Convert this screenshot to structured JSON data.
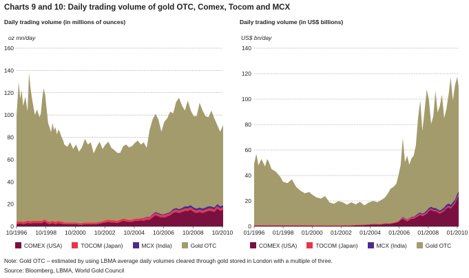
{
  "title": "Charts 9 and 10: Daily trading volume of gold OTC, Comex, Tocom and MCX",
  "note": "Note: Gold OTC – estimated by using LBMA average daily volumes cleared through gold stored in London with a multiple of three.",
  "source": "Source: Bloomberg, LBMA, World Gold Council",
  "colors": {
    "comex": "#7a1040",
    "tocom": "#e8354a",
    "mcx": "#4b2c8c",
    "gold_otc": "#a39b6c"
  },
  "chart_data": [
    {
      "type": "area",
      "subtitle": "Daily trading volume (in millions of ounces)",
      "ylabel": "oz mn/day",
      "ylim": [
        0,
        160
      ],
      "yticks": [
        0,
        20,
        40,
        60,
        80,
        100,
        120,
        140,
        160
      ],
      "xlim": [
        1996.75,
        2010.8
      ],
      "xticks": [
        {
          "label": "10/1996",
          "x": 1996.75
        },
        {
          "label": "10/1998",
          "x": 1998.75
        },
        {
          "label": "10/2000",
          "x": 2000.75
        },
        {
          "label": "10/2002",
          "x": 2002.75
        },
        {
          "label": "10/2004",
          "x": 2004.75
        },
        {
          "label": "10/2006",
          "x": 2006.75
        },
        {
          "label": "10/2008",
          "x": 2008.75
        },
        {
          "label": "10/2010",
          "x": 2010.75
        }
      ],
      "x": [
        1996.75,
        1996.9,
        1997.0,
        1997.1,
        1997.2,
        1997.35,
        1997.5,
        1997.6,
        1997.7,
        1997.8,
        1998.0,
        1998.15,
        1998.3,
        1998.4,
        1998.5,
        1998.6,
        1998.7,
        1998.8,
        1998.9,
        1999.0,
        1999.1,
        1999.2,
        1999.3,
        1999.4,
        1999.5,
        1999.6,
        1999.7,
        1999.8,
        1999.9,
        2000.0,
        2000.2,
        2000.4,
        2000.6,
        2000.8,
        2001.0,
        2001.2,
        2001.4,
        2001.6,
        2001.8,
        2002.0,
        2002.2,
        2002.4,
        2002.6,
        2002.8,
        2003.0,
        2003.2,
        2003.4,
        2003.6,
        2003.8,
        2004.0,
        2004.2,
        2004.4,
        2004.6,
        2004.8,
        2005.0,
        2005.2,
        2005.4,
        2005.6,
        2005.8,
        2006.0,
        2006.2,
        2006.4,
        2006.6,
        2006.8,
        2007.0,
        2007.2,
        2007.4,
        2007.6,
        2007.8,
        2008.0,
        2008.2,
        2008.4,
        2008.6,
        2008.8,
        2009.0,
        2009.2,
        2009.4,
        2009.6,
        2009.8,
        2010.0,
        2010.2,
        2010.4,
        2010.6,
        2010.8
      ],
      "series": [
        {
          "name": "COMEX (USA)",
          "color_key": "comex",
          "values": [
            2,
            2.5,
            2.5,
            2.5,
            2,
            2.5,
            3,
            3,
            2.5,
            3,
            3,
            3,
            3,
            3,
            3,
            4,
            4,
            3,
            2.5,
            2,
            2.5,
            3,
            2.5,
            2,
            2.5,
            3,
            2.5,
            2.5,
            2,
            2,
            2,
            2,
            2,
            2,
            1.5,
            1.5,
            2,
            2,
            2,
            2,
            2,
            2.5,
            3,
            3.5,
            4,
            3.5,
            3.5,
            3,
            4,
            5,
            4.5,
            4,
            4,
            5,
            5,
            5.5,
            5,
            6,
            6,
            8,
            10,
            9,
            8,
            8,
            9,
            10,
            12,
            13,
            12,
            13,
            14,
            14,
            15,
            13,
            12,
            13,
            12,
            13,
            14,
            14,
            13,
            16,
            14,
            15
          ]
        },
        {
          "name": "TOCOM (Japan)",
          "color_key": "tocom",
          "values": [
            2,
            2,
            2,
            2,
            2,
            2,
            2,
            2,
            2,
            2,
            2,
            2,
            2,
            2,
            2,
            2,
            2,
            2,
            2,
            2,
            2,
            2,
            2,
            2,
            2,
            2,
            2,
            2,
            2,
            1.5,
            1.5,
            1.5,
            1.5,
            1.5,
            1.5,
            1.5,
            1.5,
            1.5,
            1.5,
            1.5,
            1.5,
            1.5,
            1.5,
            2,
            2,
            2,
            2,
            2,
            2,
            2,
            2,
            2,
            2,
            2,
            2,
            2,
            2,
            2,
            2,
            2,
            2,
            2,
            2,
            2,
            2,
            2,
            2,
            2,
            2,
            2,
            2,
            2,
            2,
            2,
            2,
            2,
            2,
            2,
            2,
            2,
            2,
            2,
            2,
            2
          ]
        },
        {
          "name": "MCX (India)",
          "color_key": "mcx",
          "values": [
            0,
            0,
            0,
            0,
            0,
            0,
            0,
            0,
            0,
            0,
            0,
            0,
            0,
            0,
            0,
            0,
            0,
            0,
            0,
            0,
            0,
            0,
            0,
            0,
            0,
            0,
            0,
            0,
            0,
            0,
            0,
            0,
            0,
            0,
            0,
            0,
            0,
            0,
            0,
            0,
            0,
            0,
            0,
            0,
            0,
            0,
            0,
            0,
            0,
            0,
            0,
            0,
            0,
            0,
            0,
            0,
            0.5,
            0.5,
            0.5,
            1,
            1,
            1,
            1,
            1,
            1,
            1,
            1.5,
            1.5,
            1.5,
            1.5,
            2,
            2,
            2,
            2,
            2,
            2,
            2,
            2,
            2,
            2,
            2,
            2,
            2,
            2
          ]
        },
        {
          "name": "Gold OTC",
          "color_key": "gold_otc",
          "values": [
            96,
            125,
            110,
            118,
            104,
            112,
            98,
            133,
            120,
            110,
            95,
            100,
            93,
            96,
            110,
            118,
            112,
            100,
            88,
            85,
            80,
            88,
            82,
            85,
            78,
            82,
            80,
            76,
            74,
            70,
            68,
            72,
            66,
            70,
            64,
            68,
            75,
            70,
            72,
            62,
            68,
            72,
            65,
            68,
            70,
            65,
            63,
            61,
            60,
            65,
            67,
            65,
            66,
            68,
            70,
            66,
            68,
            62,
            78,
            85,
            88,
            84,
            74,
            83,
            85,
            90,
            86,
            95,
            100,
            92,
            86,
            95,
            85,
            82,
            83,
            94,
            88,
            82,
            80,
            86,
            80,
            71,
            67,
            72
          ]
        }
      ]
    },
    {
      "type": "area",
      "subtitle": "Daily trading volume (in US$ billions)",
      "ylabel": "US$ bn/day",
      "ylim": [
        0,
        140
      ],
      "yticks": [
        0,
        20,
        40,
        60,
        80,
        100,
        120,
        140
      ],
      "xlim": [
        1996.0,
        2010.1
      ],
      "xticks": [
        {
          "label": "01/1996",
          "x": 1996.0
        },
        {
          "label": "01/1998",
          "x": 1998.0
        },
        {
          "label": "01/2000",
          "x": 2000.0
        },
        {
          "label": "01/2002",
          "x": 2002.0
        },
        {
          "label": "01/2004",
          "x": 2004.0
        },
        {
          "label": "01/2006",
          "x": 2006.0
        },
        {
          "label": "01/2008",
          "x": 2008.0
        },
        {
          "label": "01/2010",
          "x": 2010.0
        }
      ],
      "x": [
        1996.0,
        1996.15,
        1996.3,
        1996.5,
        1996.75,
        1996.9,
        1997.0,
        1997.2,
        1997.5,
        1997.8,
        1998.0,
        1998.3,
        1998.6,
        1998.9,
        1999.2,
        1999.5,
        1999.8,
        2000.0,
        2000.3,
        2000.6,
        2000.9,
        2001.2,
        2001.5,
        2001.8,
        2002.1,
        2002.4,
        2002.7,
        2003.0,
        2003.3,
        2003.6,
        2003.9,
        2004.2,
        2004.5,
        2004.8,
        2005.0,
        2005.2,
        2005.4,
        2005.6,
        2005.8,
        2005.95,
        2006.1,
        2006.25,
        2006.4,
        2006.55,
        2006.7,
        2006.85,
        2007.0,
        2007.15,
        2007.3,
        2007.45,
        2007.6,
        2007.75,
        2007.9,
        2008.05,
        2008.2,
        2008.35,
        2008.5,
        2008.65,
        2008.8,
        2008.95,
        2009.1,
        2009.25,
        2009.4,
        2009.55,
        2009.7,
        2009.85,
        2010.0,
        2010.1
      ],
      "series": [
        {
          "name": "COMEX (USA)",
          "color_key": "comex",
          "values": [
            0.5,
            0.5,
            0.5,
            0.5,
            0.5,
            0.5,
            0.5,
            0.5,
            0.5,
            0.5,
            0.5,
            0.5,
            0.5,
            0.5,
            0.5,
            0.5,
            0.5,
            0.5,
            0.3,
            0.3,
            0.3,
            0.3,
            0.3,
            0.3,
            0.5,
            0.5,
            0.5,
            0.8,
            0.8,
            1,
            1.2,
            1.5,
            1.5,
            1.5,
            2,
            2,
            2,
            2.5,
            3,
            3.5,
            5,
            6,
            5,
            4,
            5,
            6,
            6,
            7,
            8,
            9,
            8,
            9,
            10,
            12,
            13,
            12,
            12,
            11,
            10,
            11,
            12,
            14,
            15,
            14,
            16,
            18,
            22,
            24
          ]
        },
        {
          "name": "TOCOM (Japan)",
          "color_key": "tocom",
          "values": [
            0.5,
            0.5,
            0.5,
            0.5,
            0.5,
            0.5,
            0.5,
            0.5,
            0.5,
            0.5,
            0.5,
            0.5,
            0.5,
            0.5,
            0.5,
            0.5,
            0.5,
            0.5,
            0.5,
            0.5,
            0.5,
            0.5,
            0.5,
            0.5,
            0.5,
            0.5,
            0.5,
            0.5,
            0.5,
            0.5,
            0.5,
            0.5,
            0.5,
            0.5,
            0.5,
            0.5,
            0.5,
            0.5,
            0.5,
            0.8,
            0.8,
            1,
            1,
            1,
            1,
            1,
            1,
            1,
            1,
            1,
            1,
            1,
            1,
            1,
            1,
            1,
            1,
            1,
            1,
            1,
            1,
            1,
            1,
            1,
            1,
            1,
            1,
            1
          ]
        },
        {
          "name": "MCX (India)",
          "color_key": "mcx",
          "values": [
            0,
            0,
            0,
            0,
            0,
            0,
            0,
            0,
            0,
            0,
            0,
            0,
            0,
            0,
            0,
            0,
            0,
            0,
            0,
            0,
            0,
            0,
            0,
            0,
            0,
            0,
            0,
            0,
            0,
            0,
            0,
            0,
            0,
            0,
            0,
            0,
            0,
            0,
            0,
            0,
            0.3,
            0.5,
            0.5,
            0.5,
            0.5,
            0.5,
            0.5,
            0.8,
            1,
            1,
            1,
            1,
            1.5,
            1.5,
            1.5,
            1.5,
            1.5,
            1.5,
            1.5,
            1.5,
            2,
            2,
            2,
            2,
            2,
            2,
            2.5,
            2.5
          ]
        },
        {
          "name": "Gold OTC",
          "color_key": "gold_otc",
          "values": [
            48,
            56,
            47,
            52,
            46,
            52,
            50,
            44,
            42,
            38,
            34,
            33,
            36,
            30,
            27,
            25,
            26,
            24,
            22,
            21,
            23,
            18,
            17,
            19,
            18,
            16,
            18,
            16,
            18,
            15,
            17,
            18,
            17,
            19,
            20,
            23,
            27,
            28,
            30,
            36,
            42,
            62,
            44,
            50,
            42,
            46,
            48,
            55,
            75,
            88,
            65,
            80,
            95,
            85,
            65,
            72,
            92,
            76,
            82,
            90,
            70,
            75,
            85,
            100,
            80,
            90,
            92,
            82
          ]
        }
      ]
    }
  ]
}
